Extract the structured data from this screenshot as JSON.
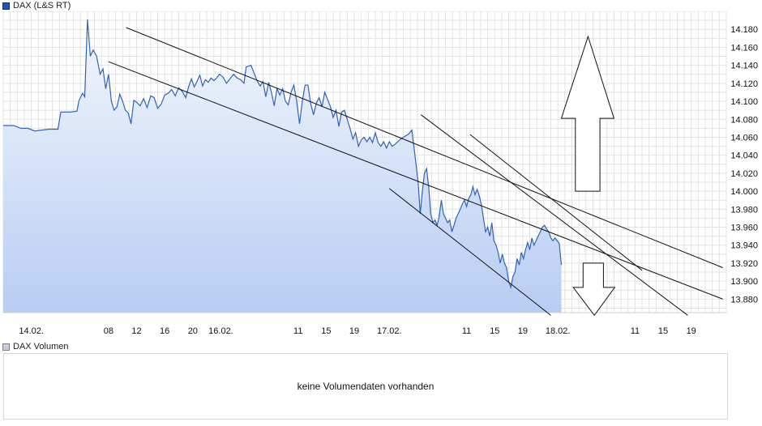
{
  "legend": {
    "price_label": "DAX (L&S RT)",
    "volume_label": "DAX Volumen",
    "price_color": "#1f56b4",
    "volume_color": "#c8cdd6"
  },
  "volume": {
    "message": "keine Volumendaten vorhanden"
  },
  "chart_data": {
    "type": "area",
    "title": "",
    "xlabel": "",
    "ylabel": "",
    "ylim": [
      13865,
      14200
    ],
    "grid": true,
    "y_ticks": [
      "14.180",
      "14.160",
      "14.140",
      "14.120",
      "14.100",
      "14.080",
      "14.060",
      "14.040",
      "14.020",
      "14.000",
      "13.980",
      "13.960",
      "13.940",
      "13.920",
      "13.900",
      "13.880"
    ],
    "x_ticks": [
      {
        "label": "14.02.",
        "t": 21
      },
      {
        "label": "08",
        "t": 32
      },
      {
        "label": "12",
        "t": 36
      },
      {
        "label": "16",
        "t": 40
      },
      {
        "label": "20",
        "t": 44
      },
      {
        "label": "16.02.",
        "t": 48
      },
      {
        "label": "11",
        "t": 59
      },
      {
        "label": "15",
        "t": 63
      },
      {
        "label": "19",
        "t": 67
      },
      {
        "label": "17.02.",
        "t": 72
      },
      {
        "label": "11",
        "t": 83
      },
      {
        "label": "15",
        "t": 87
      },
      {
        "label": "19",
        "t": 91
      },
      {
        "label": "18.02.",
        "t": 96
      },
      {
        "label": "11",
        "t": 107
      },
      {
        "label": "15",
        "t": 111
      },
      {
        "label": "19",
        "t": 115
      }
    ],
    "t_range": [
      17,
      120
    ],
    "series": [
      {
        "color": "#2f63b8",
        "points": [
          [
            17,
            14073
          ],
          [
            18.5,
            14073
          ],
          [
            19.5,
            14070
          ],
          [
            20.5,
            14070
          ],
          [
            21.5,
            14067
          ],
          [
            22.5,
            14068
          ],
          [
            23.5,
            14069
          ],
          [
            24.8,
            14069
          ],
          [
            25.2,
            14088
          ],
          [
            26.5,
            14088
          ],
          [
            27.5,
            14089
          ],
          [
            27.8,
            14101
          ],
          [
            28.3,
            14109
          ],
          [
            28.6,
            14105
          ],
          [
            29,
            14191
          ],
          [
            29.4,
            14150
          ],
          [
            29.8,
            14157
          ],
          [
            30.3,
            14150
          ],
          [
            30.8,
            14130
          ],
          [
            31.2,
            14136
          ],
          [
            31.6,
            14114
          ],
          [
            32,
            14130
          ],
          [
            32.4,
            14100
          ],
          [
            32.8,
            14090
          ],
          [
            33.2,
            14094
          ],
          [
            33.6,
            14108
          ],
          [
            34,
            14100
          ],
          [
            34.4,
            14090
          ],
          [
            34.8,
            14087
          ],
          [
            35.2,
            14075
          ],
          [
            35.6,
            14101
          ],
          [
            36,
            14099
          ],
          [
            36.5,
            14095
          ],
          [
            37,
            14103
          ],
          [
            37.5,
            14093
          ],
          [
            38,
            14106
          ],
          [
            38.5,
            14104
          ],
          [
            39,
            14092
          ],
          [
            39.5,
            14097
          ],
          [
            40,
            14107
          ],
          [
            40.5,
            14109
          ],
          [
            41,
            14113
          ],
          [
            41.5,
            14106
          ],
          [
            42,
            14115
          ],
          [
            42.5,
            14111
          ],
          [
            43,
            14104
          ],
          [
            43.4,
            14116
          ],
          [
            43.8,
            14125
          ],
          [
            44.2,
            14116
          ],
          [
            44.6,
            14122
          ],
          [
            45,
            14129
          ],
          [
            45.4,
            14117
          ],
          [
            45.8,
            14124
          ],
          [
            46.2,
            14121
          ],
          [
            46.6,
            14126
          ],
          [
            47,
            14123
          ],
          [
            47.4,
            14126
          ],
          [
            47.8,
            14130
          ],
          [
            48.3,
            14127
          ],
          [
            48.8,
            14120
          ],
          [
            49.3,
            14125
          ],
          [
            49.8,
            14130
          ],
          [
            50.3,
            14126
          ],
          [
            50.8,
            14124
          ],
          [
            51.3,
            14120
          ],
          [
            51.6,
            14138
          ],
          [
            52.3,
            14140
          ],
          [
            52.8,
            14130
          ],
          [
            53.2,
            14122
          ],
          [
            53.6,
            14117
          ],
          [
            54,
            14122
          ],
          [
            54.4,
            14105
          ],
          [
            54.8,
            14121
          ],
          [
            55.2,
            14110
          ],
          [
            55.6,
            14095
          ],
          [
            56,
            14114
          ],
          [
            56.4,
            14107
          ],
          [
            56.8,
            14114
          ],
          [
            57.2,
            14100
          ],
          [
            57.6,
            14096
          ],
          [
            58,
            14110
          ],
          [
            58.4,
            14118
          ],
          [
            58.8,
            14100
          ],
          [
            59.2,
            14075
          ],
          [
            59.6,
            14100
          ],
          [
            60,
            14118
          ],
          [
            60.4,
            14118
          ],
          [
            60.8,
            14097
          ],
          [
            61.2,
            14085
          ],
          [
            61.6,
            14098
          ],
          [
            62,
            14104
          ],
          [
            62.4,
            14094
          ],
          [
            62.8,
            14110
          ],
          [
            63.2,
            14102
          ],
          [
            63.6,
            14094
          ],
          [
            64,
            14082
          ],
          [
            64.4,
            14090
          ],
          [
            64.8,
            14072
          ],
          [
            65.2,
            14088
          ],
          [
            65.6,
            14090
          ],
          [
            66,
            14080
          ],
          [
            66.4,
            14070
          ],
          [
            66.8,
            14058
          ],
          [
            67.2,
            14065
          ],
          [
            67.6,
            14050
          ],
          [
            68,
            14057
          ],
          [
            68.4,
            14060
          ],
          [
            68.8,
            14055
          ],
          [
            69.2,
            14060
          ],
          [
            69.6,
            14054
          ],
          [
            70,
            14065
          ],
          [
            70.4,
            14054
          ],
          [
            70.8,
            14050
          ],
          [
            71.2,
            14055
          ],
          [
            71.6,
            14048
          ],
          [
            72,
            14055
          ],
          [
            72.4,
            14050
          ],
          [
            72.8,
            14052
          ],
          [
            73.2,
            14055
          ],
          [
            73.6,
            14058
          ],
          [
            74,
            14060
          ],
          [
            74.4,
            14062
          ],
          [
            74.8,
            14064
          ],
          [
            75.2,
            14068
          ],
          [
            75.5,
            14050
          ],
          [
            75.8,
            14030
          ],
          [
            76.1,
            14010
          ],
          [
            76.4,
            13975
          ],
          [
            76.7,
            14000
          ],
          [
            77,
            14020
          ],
          [
            77.3,
            14025
          ],
          [
            77.6,
            14005
          ],
          [
            77.9,
            13975
          ],
          [
            78.2,
            13965
          ],
          [
            78.5,
            13968
          ],
          [
            78.8,
            13962
          ],
          [
            79.1,
            13972
          ],
          [
            79.4,
            13990
          ],
          [
            79.7,
            13975
          ],
          [
            80,
            13970
          ],
          [
            80.3,
            13965
          ],
          [
            80.6,
            13968
          ],
          [
            80.9,
            13955
          ],
          [
            81.2,
            13962
          ],
          [
            81.5,
            13970
          ],
          [
            81.8,
            13975
          ],
          [
            82.1,
            13980
          ],
          [
            82.4,
            13986
          ],
          [
            82.7,
            13990
          ],
          [
            83,
            13983
          ],
          [
            83.3,
            13992
          ],
          [
            83.6,
            13996
          ],
          [
            83.9,
            14005
          ],
          [
            84.2,
            13996
          ],
          [
            84.5,
            14002
          ],
          [
            84.8,
            13995
          ],
          [
            85.1,
            13985
          ],
          [
            85.4,
            13970
          ],
          [
            85.7,
            13955
          ],
          [
            86,
            13960
          ],
          [
            86.3,
            13950
          ],
          [
            86.6,
            13965
          ],
          [
            86.9,
            13945
          ],
          [
            87.2,
            13940
          ],
          [
            87.5,
            13932
          ],
          [
            87.8,
            13920
          ],
          [
            88.1,
            13930
          ],
          [
            88.4,
            13920
          ],
          [
            88.7,
            13915
          ],
          [
            89,
            13900
          ],
          [
            89.3,
            13893
          ],
          [
            89.6,
            13905
          ],
          [
            89.9,
            13910
          ],
          [
            90.2,
            13925
          ],
          [
            90.5,
            13918
          ],
          [
            90.8,
            13932
          ],
          [
            91.1,
            13925
          ],
          [
            91.4,
            13935
          ],
          [
            91.7,
            13943
          ],
          [
            92,
            13935
          ],
          [
            92.3,
            13948
          ],
          [
            92.6,
            13940
          ],
          [
            92.9,
            13945
          ],
          [
            93.2,
            13950
          ],
          [
            93.5,
            13955
          ],
          [
            93.8,
            13960
          ],
          [
            94.1,
            13962
          ],
          [
            94.4,
            13958
          ],
          [
            94.7,
            13955
          ],
          [
            95,
            13948
          ],
          [
            95.3,
            13945
          ],
          [
            95.6,
            13948
          ],
          [
            95.9,
            13945
          ],
          [
            96.2,
            13942
          ],
          [
            96.5,
            13918
          ]
        ]
      }
    ],
    "annotations": {
      "trend_lines": [
        {
          "t1": 34.5,
          "v1": 14182,
          "t2": 119.5,
          "v2": 13915
        },
        {
          "t1": 32,
          "v1": 14144,
          "t2": 119.5,
          "v2": 13880
        },
        {
          "t1": 76.5,
          "v1": 14085,
          "t2": 114.5,
          "v2": 13862
        },
        {
          "t1": 72,
          "v1": 14003,
          "t2": 95,
          "v2": 13862
        },
        {
          "t1": 83.5,
          "v1": 14063,
          "t2": 108,
          "v2": 13912
        }
      ],
      "arrow_up": {
        "t_left": 96.5,
        "t_right": 104,
        "t_center": 100.3,
        "v_tip": 14172,
        "v_shoulder": 14081,
        "v_bottom": 14000,
        "t_shaft_left": 98.5,
        "t_shaft_right": 102
      },
      "arrow_down": {
        "t_left": 98.2,
        "t_right": 104.1,
        "t_center": 101.2,
        "v_top": 13920,
        "v_shoulder": 13893,
        "v_tip": 13862,
        "t_shaft_left": 99.6,
        "t_shaft_right": 102.5
      }
    }
  }
}
